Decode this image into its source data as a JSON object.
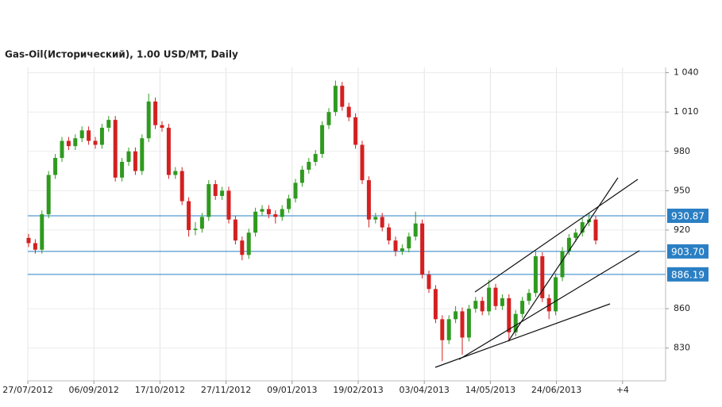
{
  "chart_data": {
    "type": "candlestick",
    "title": "Gas-Oil(Исторический), 1.00 USD/MT, Daily",
    "x_labels": [
      "27/07/2012",
      "06/09/2012",
      "17/10/2012",
      "27/11/2012",
      "09/01/2013",
      "19/02/2013",
      "03/04/2013",
      "14/05/2013",
      "24/06/2013",
      "+4"
    ],
    "ylim": [
      805,
      1044
    ],
    "yticks": [
      {
        "value": 1040,
        "label": "1 040"
      },
      {
        "value": 1010,
        "label": "1 010"
      },
      980,
      950,
      920,
      860,
      830
    ],
    "up_color": "#2f9a1f",
    "down_color": "#d42020",
    "level_color": "#2a7fc4",
    "levels": [
      930.87,
      903.7,
      886.19
    ],
    "level_labels": [
      "930.87",
      "903.70",
      "886.19"
    ],
    "open": [
      914,
      910,
      905,
      932,
      962,
      975,
      988,
      984,
      990,
      996,
      988,
      985,
      998,
      1004,
      960,
      972,
      980,
      965,
      990,
      1018,
      1000,
      998,
      962,
      965,
      942,
      920,
      921,
      930,
      955,
      946,
      950,
      928,
      912,
      901,
      918,
      934,
      936,
      932,
      930,
      936,
      944,
      956,
      966,
      972,
      978,
      1000,
      1010,
      1030,
      1014,
      1006,
      985,
      958,
      928,
      930,
      922,
      912,
      904,
      906,
      915,
      925,
      886,
      875,
      852,
      836,
      852,
      858,
      838,
      860,
      866,
      858,
      876,
      862,
      868,
      842,
      856,
      866,
      872,
      900,
      868,
      858,
      884,
      904,
      914,
      918,
      926,
      928
    ],
    "high": [
      917,
      913,
      935,
      965,
      978,
      991,
      991,
      993,
      999,
      999,
      991,
      1001,
      1007,
      1007,
      975,
      983,
      983,
      993,
      1024,
      1021,
      1003,
      1001,
      968,
      968,
      945,
      926,
      933,
      958,
      958,
      953,
      953,
      931,
      915,
      921,
      937,
      939,
      939,
      935,
      939,
      947,
      959,
      969,
      975,
      981,
      1003,
      1013,
      1034,
      1033,
      1017,
      1009,
      988,
      961,
      933,
      933,
      925,
      915,
      909,
      918,
      934,
      928,
      889,
      878,
      855,
      855,
      862,
      861,
      863,
      869,
      869,
      882,
      879,
      871,
      871,
      859,
      869,
      875,
      904,
      903,
      871,
      887,
      907,
      917,
      921,
      929,
      933,
      931
    ],
    "low": [
      907,
      902,
      902,
      929,
      959,
      972,
      981,
      981,
      987,
      985,
      982,
      982,
      995,
      957,
      957,
      969,
      962,
      962,
      987,
      997,
      995,
      959,
      959,
      939,
      915,
      916,
      918,
      927,
      943,
      943,
      925,
      909,
      897,
      898,
      915,
      931,
      929,
      925,
      927,
      933,
      941,
      953,
      963,
      969,
      975,
      997,
      1007,
      1011,
      1003,
      982,
      955,
      922,
      925,
      919,
      909,
      900,
      901,
      903,
      912,
      883,
      872,
      849,
      820,
      833,
      849,
      825,
      835,
      857,
      855,
      855,
      859,
      859,
      835,
      839,
      853,
      863,
      869,
      865,
      852,
      855,
      881,
      901,
      911,
      915,
      923,
      909
    ],
    "close": [
      910,
      905,
      932,
      962,
      975,
      988,
      984,
      990,
      996,
      988,
      985,
      998,
      1004,
      960,
      972,
      980,
      965,
      990,
      1018,
      1000,
      998,
      962,
      965,
      942,
      920,
      921,
      930,
      955,
      946,
      950,
      928,
      912,
      901,
      918,
      934,
      936,
      932,
      930,
      936,
      944,
      956,
      966,
      972,
      978,
      1000,
      1010,
      1030,
      1014,
      1006,
      985,
      958,
      928,
      930,
      922,
      912,
      904,
      906,
      915,
      925,
      886,
      875,
      852,
      836,
      852,
      858,
      838,
      860,
      866,
      858,
      876,
      862,
      868,
      842,
      856,
      866,
      872,
      900,
      868,
      858,
      884,
      904,
      914,
      918,
      926,
      928,
      912
    ]
  }
}
